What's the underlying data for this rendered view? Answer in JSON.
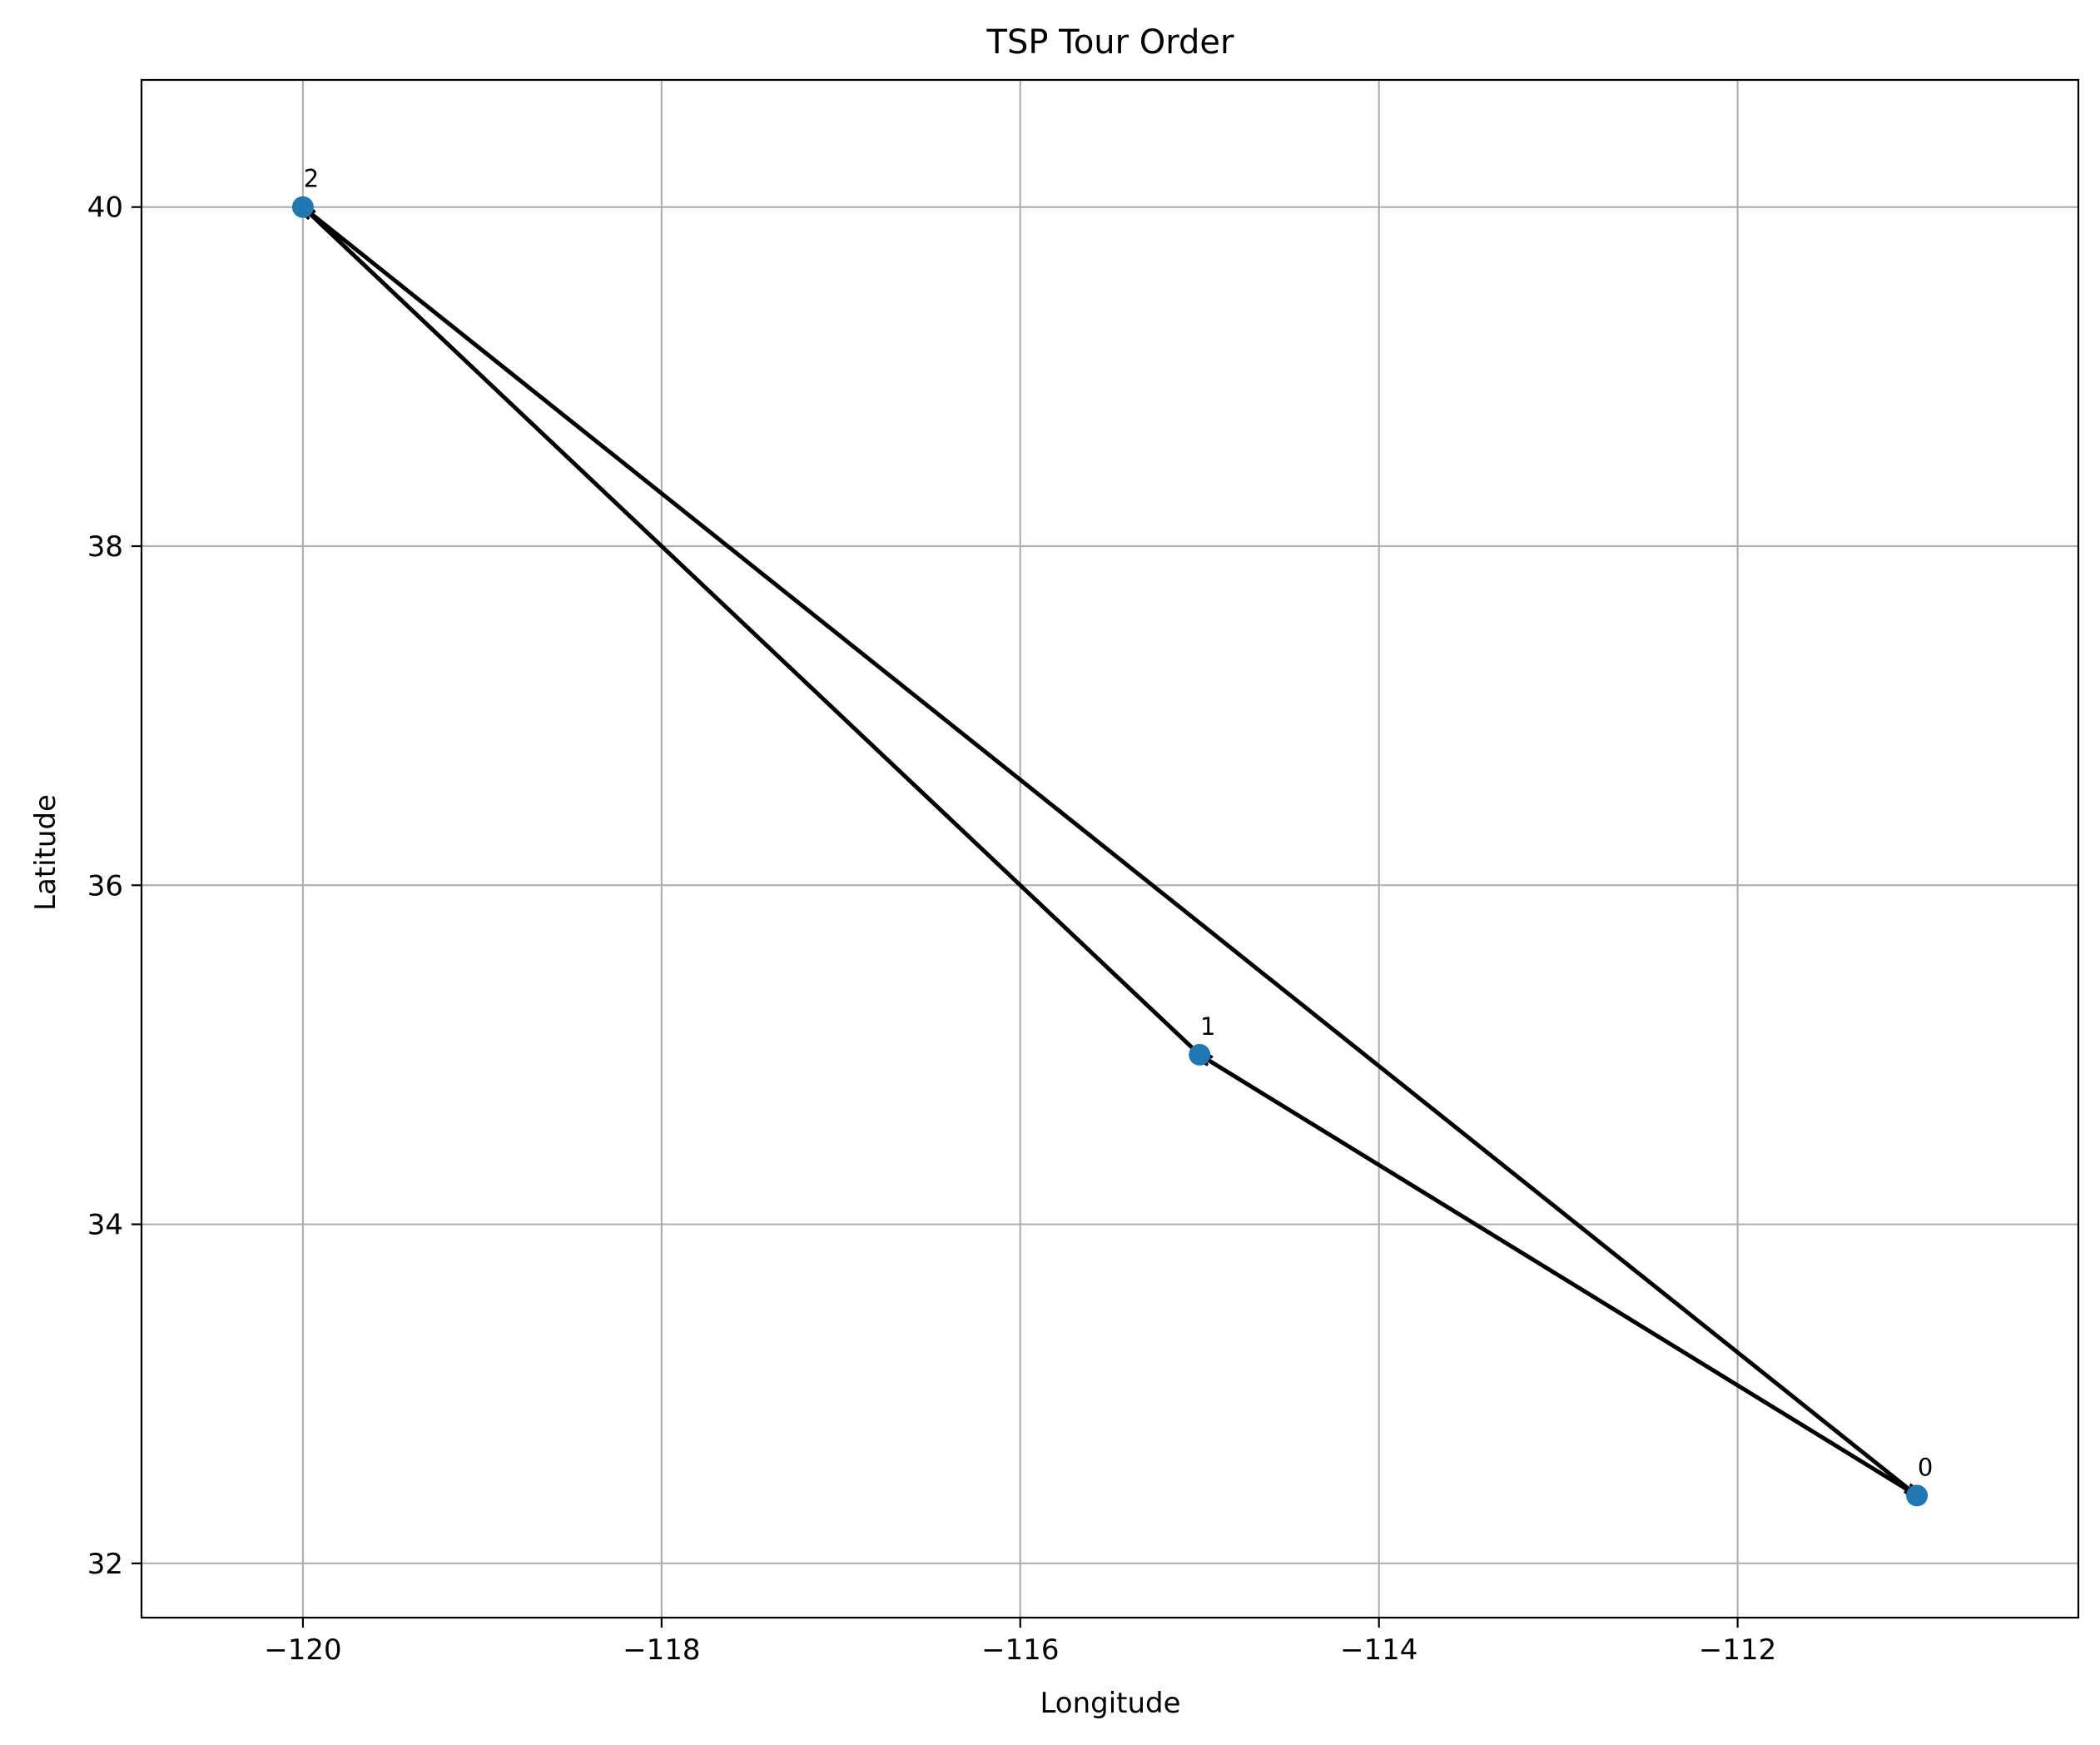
{
  "chart_data": {
    "type": "scatter",
    "title": "TSP Tour Order",
    "xlabel": "Longitude",
    "ylabel": "Latitude",
    "xlim": [
      -120.9,
      -110.1
    ],
    "ylim": [
      31.68,
      40.75
    ],
    "x_ticks": [
      -120,
      -118,
      -116,
      -114,
      -112
    ],
    "x_tick_labels": [
      "−120",
      "−118",
      "−116",
      "−114",
      "−112"
    ],
    "y_ticks": [
      32,
      34,
      36,
      38,
      40
    ],
    "y_tick_labels": [
      "32",
      "34",
      "36",
      "38",
      "40"
    ],
    "grid": true,
    "point_color": "#1f77b4",
    "arrow_color": "#000000",
    "points": [
      {
        "label": "0",
        "x": -111.0,
        "y": 32.4
      },
      {
        "label": "1",
        "x": -115.0,
        "y": 35.0
      },
      {
        "label": "2",
        "x": -120.0,
        "y": 40.0
      }
    ],
    "tour_order": [
      0,
      1,
      2,
      0
    ]
  }
}
